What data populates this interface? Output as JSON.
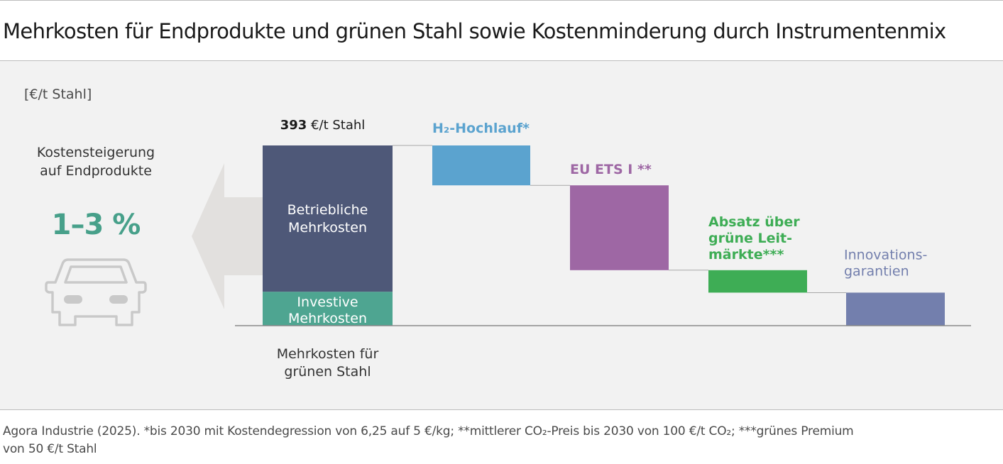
{
  "title": "Mehrkosten für Endprodukte und grünen Stahl sowie Kostenminderung durch Instrumentenmix",
  "unit_label": "[€/t Stahl]",
  "impact": {
    "caption_line1": "Kostensteigerung",
    "caption_line2": "auf Endprodukte",
    "value": "1–3 %"
  },
  "chart_data": {
    "type": "bar",
    "subtype": "waterfall",
    "unit": "€/t Stahl",
    "total": {
      "value_bold": "393",
      "value_unit": "€/t Stahl",
      "value": 393,
      "label_line1": "Mehrkosten für",
      "label_line2": "grünen Stahl",
      "components": [
        {
          "label_line1": "Investive",
          "label_line2": "Mehrkosten",
          "value": 74,
          "color": "#4ea591"
        },
        {
          "label_line1": "Betriebliche",
          "label_line2": "Mehrkosten",
          "value": 319,
          "color": "#4e5878"
        }
      ]
    },
    "reductions": [
      {
        "label_lines": [
          "H₂-Hochlauf*"
        ],
        "from": 393,
        "to": 306,
        "color": "#5ba3cf"
      },
      {
        "label_lines": [
          "EU ETS I **"
        ],
        "from": 306,
        "to": 121,
        "color": "#9e67a4"
      },
      {
        "label_lines": [
          "Absatz über",
          "grüne Leit-",
          "märkte***"
        ],
        "from": 121,
        "to": 72,
        "color": "#3ead55"
      },
      {
        "label_lines": [
          "Innovations-",
          "garantien"
        ],
        "from": 72,
        "to": 0,
        "color": "#737fad"
      }
    ],
    "ylim": [
      0,
      393
    ]
  },
  "footnote": {
    "line1": "Agora Industrie (2025). *bis 2030 mit Kostendegression von 6,25 auf 5 €/kg; **mittlerer CO₂-Preis bis 2030 von 100 €/t CO₂; ***grünes Premium",
    "line2": "von 50 €/t Stahl"
  }
}
